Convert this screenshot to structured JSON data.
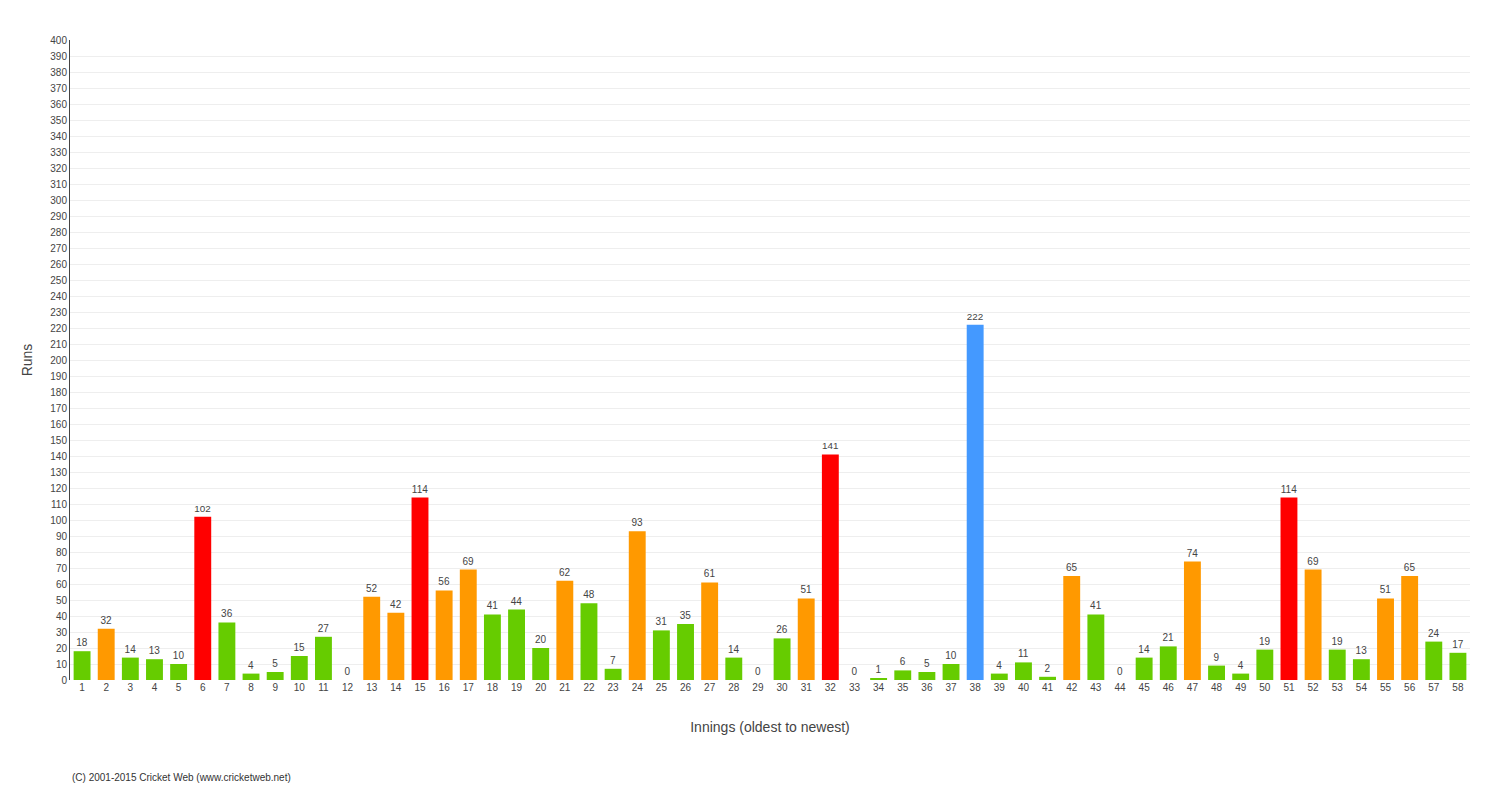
{
  "chart_data": {
    "type": "bar",
    "xlabel": "Innings (oldest to newest)",
    "ylabel": "Runs",
    "categories": [
      "1",
      "2",
      "3",
      "4",
      "5",
      "6",
      "7",
      "8",
      "9",
      "10",
      "11",
      "12",
      "13",
      "14",
      "15",
      "16",
      "17",
      "18",
      "19",
      "20",
      "21",
      "22",
      "23",
      "24",
      "25",
      "26",
      "27",
      "28",
      "29",
      "30",
      "31",
      "32",
      "33",
      "34",
      "35",
      "36",
      "37",
      "38",
      "39",
      "40",
      "41",
      "42",
      "43",
      "44",
      "45",
      "46",
      "47",
      "48",
      "49",
      "50",
      "51",
      "52",
      "53",
      "54",
      "55",
      "56",
      "57",
      "58"
    ],
    "values": [
      18,
      32,
      14,
      13,
      10,
      102,
      36,
      4,
      5,
      15,
      27,
      0,
      52,
      42,
      114,
      56,
      69,
      41,
      44,
      20,
      62,
      48,
      7,
      93,
      31,
      35,
      61,
      14,
      0,
      26,
      51,
      141,
      0,
      1,
      6,
      5,
      10,
      222,
      4,
      11,
      2,
      65,
      41,
      0,
      14,
      21,
      74,
      9,
      4,
      19,
      114,
      69,
      19,
      13,
      51,
      65,
      24,
      17
    ],
    "colors": [
      "#66cc00",
      "#ff9900",
      "#66cc00",
      "#66cc00",
      "#66cc00",
      "#ff0000",
      "#66cc00",
      "#66cc00",
      "#66cc00",
      "#66cc00",
      "#66cc00",
      "#66cc00",
      "#ff9900",
      "#ff9900",
      "#ff0000",
      "#ff9900",
      "#ff9900",
      "#66cc00",
      "#66cc00",
      "#66cc00",
      "#ff9900",
      "#66cc00",
      "#66cc00",
      "#ff9900",
      "#66cc00",
      "#66cc00",
      "#ff9900",
      "#66cc00",
      "#66cc00",
      "#66cc00",
      "#ff9900",
      "#ff0000",
      "#66cc00",
      "#66cc00",
      "#66cc00",
      "#66cc00",
      "#66cc00",
      "#4499ff",
      "#66cc00",
      "#66cc00",
      "#66cc00",
      "#ff9900",
      "#66cc00",
      "#66cc00",
      "#66cc00",
      "#66cc00",
      "#ff9900",
      "#66cc00",
      "#66cc00",
      "#66cc00",
      "#ff0000",
      "#ff9900",
      "#66cc00",
      "#66cc00",
      "#ff9900",
      "#ff9900",
      "#66cc00",
      "#66cc00"
    ],
    "ylim": [
      0,
      400
    ],
    "yticks": [
      0,
      10,
      20,
      30,
      40,
      50,
      60,
      70,
      80,
      90,
      100,
      110,
      120,
      130,
      140,
      150,
      160,
      170,
      180,
      190,
      200,
      210,
      220,
      230,
      240,
      250,
      260,
      270,
      280,
      290,
      300,
      310,
      320,
      330,
      340,
      350,
      360,
      370,
      380,
      390,
      400
    ],
    "grid": true,
    "data_labels": true,
    "annotations": [
      "(C) 2001-2015 Cricket Web (www.cricketweb.net)"
    ]
  }
}
